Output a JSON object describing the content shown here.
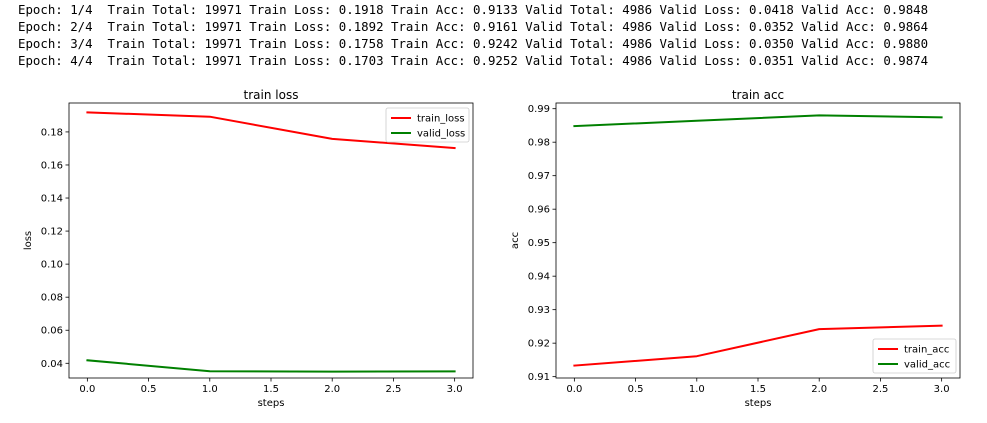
{
  "log_lines": [
    "Epoch: 1/4  Train Total: 19971 Train Loss: 0.1918 Train Acc: 0.9133 Valid Total: 4986 Valid Loss: 0.0418 Valid Acc: 0.9848",
    "Epoch: 2/4  Train Total: 19971 Train Loss: 0.1892 Train Acc: 0.9161 Valid Total: 4986 Valid Loss: 0.0352 Valid Acc: 0.9864",
    "Epoch: 3/4  Train Total: 19971 Train Loss: 0.1758 Train Acc: 0.9242 Valid Total: 4986 Valid Loss: 0.0350 Valid Acc: 0.9880",
    "Epoch: 4/4  Train Total: 19971 Train Loss: 0.1703 Train Acc: 0.9252 Valid Total: 4986 Valid Loss: 0.0351 Valid Acc: 0.9874"
  ],
  "chart_data": [
    {
      "type": "line",
      "title": "train loss",
      "xlabel": "steps",
      "ylabel": "loss",
      "x": [
        0,
        1,
        2,
        3
      ],
      "xlim": [
        -0.15,
        3.15
      ],
      "ylim": [
        0.0311,
        0.1975
      ],
      "xticks": [
        0.0,
        0.5,
        1.0,
        1.5,
        2.0,
        2.5,
        3.0
      ],
      "xtick_labels": [
        "0.0",
        "0.5",
        "1.0",
        "1.5",
        "2.0",
        "2.5",
        "3.0"
      ],
      "yticks": [
        0.04,
        0.06,
        0.08,
        0.1,
        0.12,
        0.14,
        0.16,
        0.18
      ],
      "ytick_labels": [
        "0.04",
        "0.06",
        "0.08",
        "0.10",
        "0.12",
        "0.14",
        "0.16",
        "0.18"
      ],
      "legend_position": "top-right",
      "grid": false,
      "series": [
        {
          "name": "train_loss",
          "color": "#ff0000",
          "values": [
            0.1918,
            0.1892,
            0.1758,
            0.1703
          ]
        },
        {
          "name": "valid_loss",
          "color": "#008000",
          "values": [
            0.0418,
            0.0352,
            0.035,
            0.0351
          ]
        }
      ]
    },
    {
      "type": "line",
      "title": "train acc",
      "xlabel": "steps",
      "ylabel": "acc",
      "x": [
        0,
        1,
        2,
        3
      ],
      "xlim": [
        -0.15,
        3.15
      ],
      "ylim": [
        0.9096,
        0.9917
      ],
      "xticks": [
        0.0,
        0.5,
        1.0,
        1.5,
        2.0,
        2.5,
        3.0
      ],
      "xtick_labels": [
        "0.0",
        "0.5",
        "1.0",
        "1.5",
        "2.0",
        "2.5",
        "3.0"
      ],
      "yticks": [
        0.91,
        0.92,
        0.93,
        0.94,
        0.95,
        0.96,
        0.97,
        0.98,
        0.99
      ],
      "ytick_labels": [
        "0.91",
        "0.92",
        "0.93",
        "0.94",
        "0.95",
        "0.96",
        "0.97",
        "0.98",
        "0.99"
      ],
      "legend_position": "bottom-right",
      "grid": false,
      "series": [
        {
          "name": "train_acc",
          "color": "#ff0000",
          "values": [
            0.9133,
            0.9161,
            0.9242,
            0.9252
          ]
        },
        {
          "name": "valid_acc",
          "color": "#008000",
          "values": [
            0.9848,
            0.9864,
            0.988,
            0.9874
          ]
        }
      ]
    }
  ]
}
